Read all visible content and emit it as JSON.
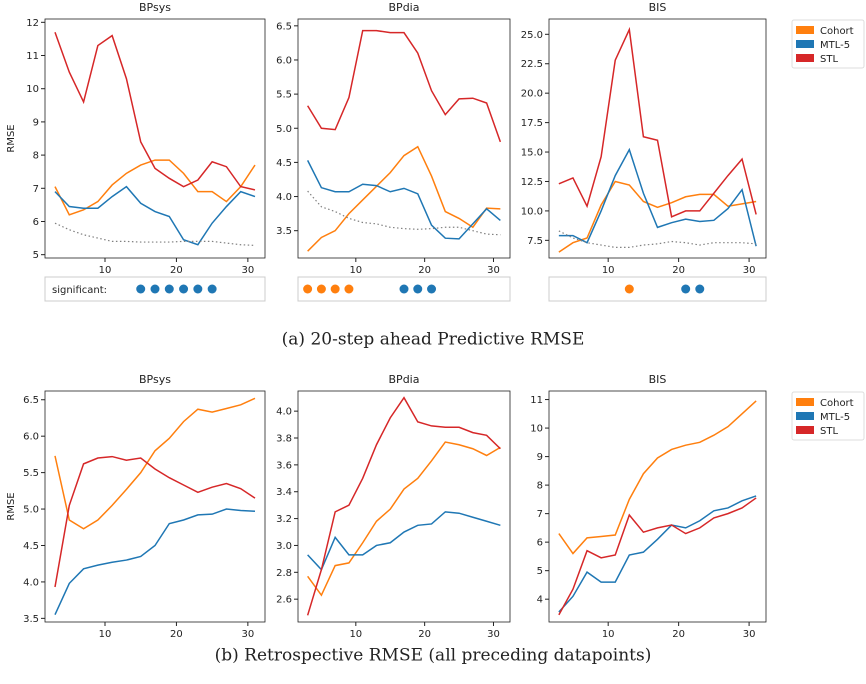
{
  "chart_data": [
    {
      "type": "line",
      "title": "BPsys",
      "ylabel": "RMSE",
      "x": [
        3,
        5,
        7,
        9,
        11,
        13,
        15,
        17,
        19,
        21,
        23,
        25,
        27,
        29,
        31
      ],
      "xlim": [
        1.6,
        32.4
      ],
      "xticks": [
        10,
        20,
        30
      ],
      "ylim": [
        4.9,
        12.1
      ],
      "yticks": [
        5,
        6,
        7,
        8,
        9,
        10,
        11,
        12
      ],
      "series": [
        {
          "name": "Cohort",
          "color": "#ff7f0e",
          "values": [
            7.05,
            6.2,
            6.35,
            6.6,
            7.1,
            7.45,
            7.7,
            7.85,
            7.85,
            7.45,
            6.9,
            6.9,
            6.6,
            7.05,
            7.7
          ]
        },
        {
          "name": "MTL-5",
          "color": "#1f77b4",
          "values": [
            6.9,
            6.45,
            6.4,
            6.4,
            6.75,
            7.05,
            6.55,
            6.3,
            6.15,
            5.45,
            5.3,
            5.95,
            6.45,
            6.9,
            6.75
          ]
        },
        {
          "name": "STL",
          "color": "#d62728",
          "values": [
            11.7,
            10.5,
            9.6,
            11.3,
            11.6,
            10.3,
            8.4,
            7.6,
            7.3,
            7.05,
            7.25,
            7.8,
            7.65,
            7.05,
            6.95
          ]
        },
        {
          "color": "#808080",
          "style": "dotted",
          "values": [
            5.95,
            5.75,
            5.6,
            5.5,
            5.4,
            5.4,
            5.38,
            5.38,
            5.38,
            5.4,
            5.4,
            5.4,
            5.35,
            5.3,
            5.28
          ]
        }
      ],
      "significant": {
        "label": "significant:",
        "x": [
          15,
          17,
          19,
          21,
          23,
          25
        ],
        "colors": [
          "#1f77b4",
          "#1f77b4",
          "#1f77b4",
          "#1f77b4",
          "#1f77b4",
          "#1f77b4"
        ]
      }
    },
    {
      "type": "line",
      "title": "BPdia",
      "x": [
        3,
        5,
        7,
        9,
        11,
        13,
        15,
        17,
        19,
        21,
        23,
        25,
        27,
        29,
        31
      ],
      "xlim": [
        1.6,
        32.4
      ],
      "xticks": [
        10,
        20,
        30
      ],
      "ylim": [
        3.1,
        6.6
      ],
      "yticks": [
        3.5,
        {
          "value": 4,
          "label": "4.0"
        },
        4.5,
        {
          "value": 5,
          "label": "5.0"
        },
        5.5,
        {
          "value": 6,
          "label": "6.0"
        },
        6.5
      ],
      "series": [
        {
          "name": "Cohort",
          "color": "#ff7f0e",
          "values": [
            3.2,
            3.4,
            3.5,
            3.75,
            3.95,
            4.15,
            4.35,
            4.6,
            4.73,
            4.3,
            3.78,
            3.68,
            3.55,
            3.83,
            3.82
          ]
        },
        {
          "name": "MTL-5",
          "color": "#1f77b4",
          "values": [
            4.53,
            4.13,
            4.07,
            4.07,
            4.18,
            4.16,
            4.07,
            4.12,
            4.04,
            3.58,
            3.39,
            3.38,
            3.6,
            3.82,
            3.65
          ]
        },
        {
          "name": "STL",
          "color": "#d62728",
          "values": [
            5.33,
            5.0,
            4.98,
            5.45,
            6.43,
            6.43,
            6.4,
            6.4,
            6.1,
            5.55,
            5.2,
            5.43,
            5.44,
            5.37,
            4.8
          ]
        },
        {
          "color": "#808080",
          "style": "dotted",
          "values": [
            4.08,
            3.85,
            3.78,
            3.68,
            3.62,
            3.6,
            3.55,
            3.53,
            3.52,
            3.53,
            3.55,
            3.55,
            3.5,
            3.45,
            3.44
          ]
        }
      ],
      "significant": {
        "x": [
          3,
          5,
          7,
          9,
          17,
          19,
          21
        ],
        "colors": [
          "#ff7f0e",
          "#ff7f0e",
          "#ff7f0e",
          "#ff7f0e",
          "#1f77b4",
          "#1f77b4",
          "#1f77b4"
        ]
      }
    },
    {
      "type": "line",
      "title": "BIS",
      "legend": "outside-right",
      "x": [
        3,
        5,
        7,
        9,
        11,
        13,
        15,
        17,
        19,
        21,
        23,
        25,
        27,
        29,
        31
      ],
      "xlim": [
        1.6,
        32.4
      ],
      "xticks": [
        10,
        20,
        30
      ],
      "ylim": [
        6,
        26.3
      ],
      "yticks": [
        7.5,
        {
          "value": 10,
          "label": "10.0"
        },
        12.5,
        {
          "value": 15,
          "label": "15.0"
        },
        17.5,
        {
          "value": 20,
          "label": "20.0"
        },
        22.5,
        {
          "value": 25,
          "label": "25.0"
        }
      ],
      "series": [
        {
          "name": "Cohort",
          "color": "#ff7f0e",
          "values": [
            6.5,
            7.3,
            7.7,
            10.5,
            12.5,
            12.2,
            10.8,
            10.3,
            10.7,
            11.2,
            11.4,
            11.4,
            10.4,
            10.6,
            10.8
          ]
        },
        {
          "name": "MTL-5",
          "color": "#1f77b4",
          "values": [
            7.9,
            7.9,
            7.3,
            10.0,
            13.0,
            15.2,
            11.5,
            8.6,
            9.0,
            9.3,
            9.1,
            9.2,
            10.2,
            11.8,
            7.0
          ]
        },
        {
          "name": "STL",
          "color": "#d62728",
          "values": [
            12.3,
            12.8,
            10.4,
            14.6,
            22.8,
            25.4,
            16.3,
            16.0,
            9.5,
            10.0,
            10.0,
            11.5,
            13.0,
            14.4,
            9.7
          ]
        },
        {
          "color": "#808080",
          "style": "dotted",
          "values": [
            8.3,
            7.7,
            7.3,
            7.1,
            6.9,
            6.9,
            7.1,
            7.2,
            7.4,
            7.3,
            7.1,
            7.3,
            7.3,
            7.3,
            7.2
          ]
        }
      ],
      "significant": {
        "x": [
          13,
          21,
          23
        ],
        "colors": [
          "#ff7f0e",
          "#1f77b4",
          "#1f77b4"
        ]
      }
    },
    {
      "type": "line",
      "title": "BPsys",
      "ylabel": "RMSE",
      "x": [
        3,
        5,
        7,
        9,
        11,
        13,
        15,
        17,
        19,
        21,
        23,
        25,
        27,
        29,
        31
      ],
      "xlim": [
        1.6,
        32.4
      ],
      "xticks": [
        10,
        20,
        30
      ],
      "ylim": [
        3.45,
        6.62
      ],
      "yticks": [
        3.5,
        {
          "value": 4,
          "label": "4.0"
        },
        4.5,
        {
          "value": 5,
          "label": "5.0"
        },
        5.5,
        {
          "value": 6,
          "label": "6.0"
        },
        6.5
      ],
      "series": [
        {
          "name": "Cohort",
          "color": "#ff7f0e",
          "values": [
            5.73,
            4.85,
            4.73,
            4.85,
            5.05,
            5.27,
            5.5,
            5.8,
            5.97,
            6.2,
            6.37,
            6.33,
            6.38,
            6.43,
            6.52
          ]
        },
        {
          "name": "MTL-5",
          "color": "#1f77b4",
          "values": [
            3.55,
            3.98,
            4.18,
            4.23,
            4.27,
            4.3,
            4.35,
            4.5,
            4.8,
            4.85,
            4.92,
            4.93,
            5.0,
            4.98,
            4.97
          ]
        },
        {
          "name": "STL",
          "color": "#d62728",
          "values": [
            3.93,
            5.05,
            5.62,
            5.7,
            5.72,
            5.67,
            5.7,
            5.55,
            5.43,
            5.33,
            5.23,
            5.3,
            5.35,
            5.28,
            5.15
          ]
        }
      ]
    },
    {
      "type": "line",
      "title": "BPdia",
      "x": [
        3,
        5,
        7,
        9,
        11,
        13,
        15,
        17,
        19,
        21,
        23,
        25,
        27,
        29,
        31
      ],
      "xlim": [
        1.6,
        32.4
      ],
      "xticks": [
        10,
        20,
        30
      ],
      "ylim": [
        2.43,
        4.15
      ],
      "yticks": [
        2.6,
        2.8,
        {
          "value": 3,
          "label": "3.0"
        },
        3.2,
        3.4,
        3.6,
        3.8,
        {
          "value": 4,
          "label": "4.0"
        }
      ],
      "series": [
        {
          "name": "Cohort",
          "color": "#ff7f0e",
          "values": [
            2.77,
            2.63,
            2.85,
            2.87,
            3.02,
            3.18,
            3.27,
            3.42,
            3.5,
            3.63,
            3.77,
            3.75,
            3.72,
            3.67,
            3.73
          ]
        },
        {
          "name": "MTL-5",
          "color": "#1f77b4",
          "values": [
            2.93,
            2.82,
            3.06,
            2.93,
            2.93,
            3.0,
            3.02,
            3.1,
            3.15,
            3.16,
            3.25,
            3.24,
            3.21,
            3.18,
            3.15
          ]
        },
        {
          "name": "STL",
          "color": "#d62728",
          "values": [
            2.48,
            2.82,
            3.25,
            3.3,
            3.5,
            3.75,
            3.95,
            4.1,
            3.92,
            3.89,
            3.88,
            3.88,
            3.84,
            3.82,
            3.72
          ]
        }
      ]
    },
    {
      "type": "line",
      "title": "BIS",
      "legend": "outside-right",
      "x": [
        3,
        5,
        7,
        9,
        11,
        13,
        15,
        17,
        19,
        21,
        23,
        25,
        27,
        29,
        31
      ],
      "xlim": [
        1.6,
        32.4
      ],
      "xticks": [
        10,
        20,
        30
      ],
      "ylim": [
        3.2,
        11.3
      ],
      "yticks": [
        4,
        5,
        6,
        7,
        8,
        9,
        10,
        11
      ],
      "series": [
        {
          "name": "Cohort",
          "color": "#ff7f0e",
          "values": [
            6.3,
            5.6,
            6.15,
            6.2,
            6.25,
            7.5,
            8.4,
            8.95,
            9.25,
            9.4,
            9.5,
            9.75,
            10.05,
            10.5,
            10.95
          ]
        },
        {
          "name": "MTL-5",
          "color": "#1f77b4",
          "values": [
            3.55,
            4.1,
            4.95,
            4.6,
            4.6,
            5.55,
            5.65,
            6.1,
            6.6,
            6.5,
            6.75,
            7.1,
            7.2,
            7.45,
            7.62
          ]
        },
        {
          "name": "STL",
          "color": "#d62728",
          "values": [
            3.45,
            4.35,
            5.7,
            5.45,
            5.55,
            6.95,
            6.35,
            6.5,
            6.6,
            6.3,
            6.5,
            6.85,
            7.0,
            7.2,
            7.55
          ]
        }
      ]
    }
  ],
  "captions": [
    "(a) 20-step ahead Predictive RMSE",
    "(b) Retrospective RMSE (all preceding datapoints)"
  ]
}
